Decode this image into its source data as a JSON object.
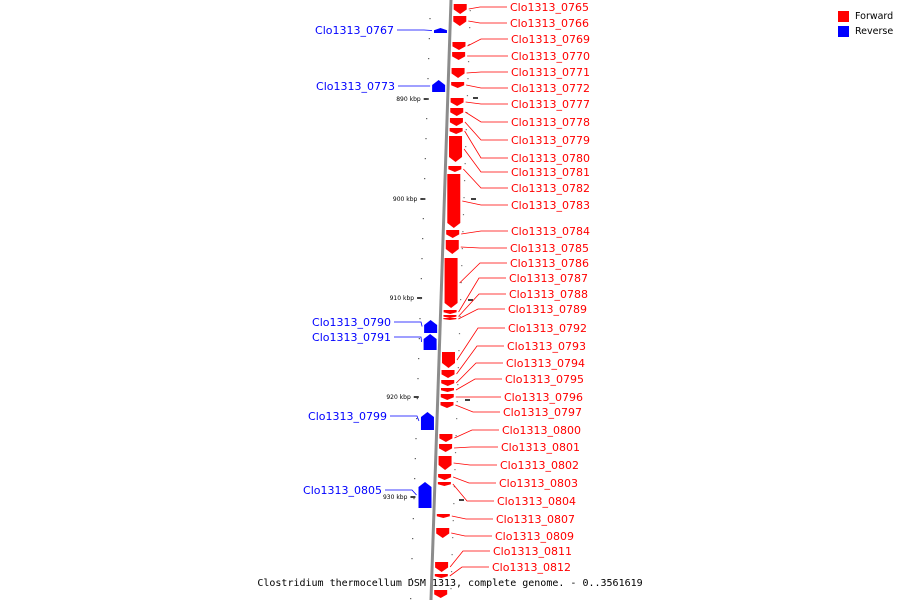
{
  "legend": [
    {
      "label": "Forward",
      "color": "#ff0000"
    },
    {
      "label": "Reverse",
      "color": "#0000ff"
    }
  ],
  "caption": "Clostridium thermocellum DSM 1313, complete genome. - 0..3561619",
  "scale": {
    "ticks": [
      "890 kbp",
      "900 kbp",
      "910 kbp",
      "920 kbp",
      "930 kbp"
    ]
  },
  "genes": {
    "reverse": [
      "Clo1313_0767",
      "Clo1313_0773",
      "Clo1313_0790",
      "Clo1313_0791",
      "Clo1313_0799",
      "Clo1313_0805"
    ],
    "forward": [
      "Clo1313_0765",
      "Clo1313_0766",
      "Clo1313_0769",
      "Clo1313_0770",
      "Clo1313_0771",
      "Clo1313_0772",
      "Clo1313_0777",
      "Clo1313_0778",
      "Clo1313_0779",
      "Clo1313_0780",
      "Clo1313_0781",
      "Clo1313_0782",
      "Clo1313_0783",
      "Clo1313_0784",
      "Clo1313_0785",
      "Clo1313_0786",
      "Clo1313_0787",
      "Clo1313_0788",
      "Clo1313_0789",
      "Clo1313_0792",
      "Clo1313_0793",
      "Clo1313_0794",
      "Clo1313_0795",
      "Clo1313_0796",
      "Clo1313_0797",
      "Clo1313_0800",
      "Clo1313_0801",
      "Clo1313_0802",
      "Clo1313_0803",
      "Clo1313_0804",
      "Clo1313_0807",
      "Clo1313_0809",
      "Clo1313_0811",
      "Clo1313_0812"
    ]
  }
}
